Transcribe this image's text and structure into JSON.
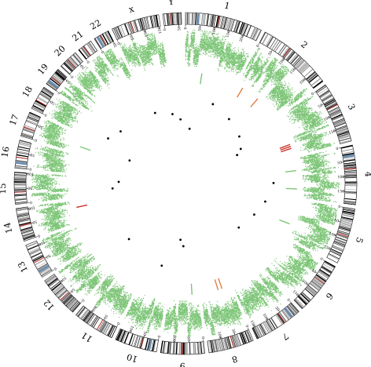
{
  "chart_data": {
    "type": "circos",
    "genome_gap_degrees": 1.4,
    "chromosomes": [
      {
        "name": "1",
        "size": 249,
        "label": "1"
      },
      {
        "name": "2",
        "size": 243,
        "label": "2"
      },
      {
        "name": "3",
        "size": 198,
        "label": "3"
      },
      {
        "name": "4",
        "size": 191,
        "label": "4"
      },
      {
        "name": "5",
        "size": 181,
        "label": "5"
      },
      {
        "name": "6",
        "size": 171,
        "label": "6"
      },
      {
        "name": "7",
        "size": 159,
        "label": "7"
      },
      {
        "name": "8",
        "size": 146,
        "label": "8"
      },
      {
        "name": "9",
        "size": 141,
        "label": "9"
      },
      {
        "name": "10",
        "size": 136,
        "label": "10"
      },
      {
        "name": "11",
        "size": 135,
        "label": "11"
      },
      {
        "name": "12",
        "size": 134,
        "label": "12"
      },
      {
        "name": "13",
        "size": 115,
        "label": "13"
      },
      {
        "name": "14",
        "size": 107,
        "label": "14"
      },
      {
        "name": "15",
        "size": 103,
        "label": "15"
      },
      {
        "name": "16",
        "size": 90,
        "label": "16"
      },
      {
        "name": "17",
        "size": 81,
        "label": "17"
      },
      {
        "name": "18",
        "size": 78,
        "label": "18"
      },
      {
        "name": "19",
        "size": 59,
        "label": "19"
      },
      {
        "name": "20",
        "size": 63,
        "label": "20"
      },
      {
        "name": "21",
        "size": 48,
        "label": "21"
      },
      {
        "name": "22",
        "size": 51,
        "label": "22"
      },
      {
        "name": "X",
        "size": 155,
        "label": "x"
      },
      {
        "name": "Y",
        "size": 59,
        "label": "Y"
      }
    ],
    "tick_step": 50,
    "tracks": {
      "ideogram": {
        "band_colors": [
          "#000000",
          "#555555",
          "#9a9a9a",
          "#ffffff"
        ],
        "centromere_color": "#b4261f",
        "stalk_color": "#6b8fb3"
      },
      "scatter": {
        "color": "#7cc576",
        "name": ""
      },
      "inner_bars": {
        "green": "#7cc576",
        "orange": "#e08040",
        "red": "#c8332a"
      },
      "inner_points": {
        "color": "#000000"
      }
    },
    "inner_bar_events": [
      {
        "chrom": "1",
        "pos": 80,
        "color": "green"
      },
      {
        "chrom": "2",
        "pos": 30,
        "color": "orange"
      },
      {
        "chrom": "2",
        "pos": 120,
        "color": "orange"
      },
      {
        "chrom": "3",
        "pos": 140,
        "color": "red"
      },
      {
        "chrom": "3",
        "pos": 150,
        "color": "red"
      },
      {
        "chrom": "3",
        "pos": 160,
        "color": "red"
      },
      {
        "chrom": "4",
        "pos": 60,
        "color": "green"
      },
      {
        "chrom": "4",
        "pos": 150,
        "color": "green"
      },
      {
        "chrom": "5",
        "pos": 120,
        "color": "green"
      },
      {
        "chrom": "8",
        "pos": 40,
        "color": "orange"
      },
      {
        "chrom": "8",
        "pos": 60,
        "color": "orange"
      },
      {
        "chrom": "9",
        "pos": 30,
        "color": "green"
      },
      {
        "chrom": "14",
        "pos": 70,
        "color": "red"
      },
      {
        "chrom": "17",
        "pos": 30,
        "color": "green"
      }
    ],
    "inner_point_events": [
      {
        "chrom": "1",
        "pos": 40
      },
      {
        "chrom": "1",
        "pos": 180
      },
      {
        "chrom": "2",
        "pos": 60
      },
      {
        "chrom": "2",
        "pos": 200
      },
      {
        "chrom": "3",
        "pos": 30
      },
      {
        "chrom": "3",
        "pos": 60
      },
      {
        "chrom": "4",
        "pos": 120
      },
      {
        "chrom": "5",
        "pos": 40
      },
      {
        "chrom": "5",
        "pos": 150
      },
      {
        "chrom": "6",
        "pos": 100
      },
      {
        "chrom": "9",
        "pos": 80
      },
      {
        "chrom": "9",
        "pos": 110
      },
      {
        "chrom": "10",
        "pos": 60
      },
      {
        "chrom": "12",
        "pos": 40
      },
      {
        "chrom": "15",
        "pos": 30
      },
      {
        "chrom": "15",
        "pos": 80
      },
      {
        "chrom": "17",
        "pos": 60
      },
      {
        "chrom": "18",
        "pos": 40
      },
      {
        "chrom": "19",
        "pos": 30
      },
      {
        "chrom": "X",
        "pos": 20
      },
      {
        "chrom": "X",
        "pos": 140
      },
      {
        "chrom": "Y",
        "pos": 30
      }
    ]
  }
}
